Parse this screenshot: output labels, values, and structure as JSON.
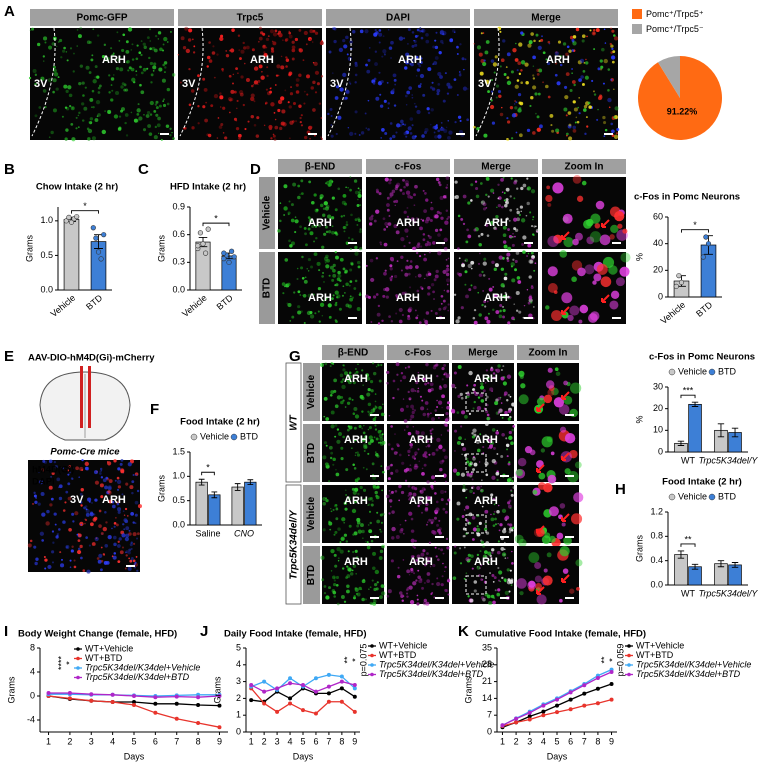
{
  "panel_letters": [
    "A",
    "B",
    "C",
    "D",
    "E",
    "F",
    "G",
    "H",
    "I",
    "J",
    "K"
  ],
  "panel_A": {
    "headers": [
      "Pomc-GFP",
      "Trpc5",
      "DAPI",
      "Merge"
    ],
    "header_colors": [
      "#39d439",
      "#e02020",
      "#3040e8",
      "#f0d020"
    ],
    "labels": [
      [
        "3V",
        "ARH"
      ],
      [
        "3V",
        "ARH"
      ],
      [
        "3V",
        "ARH"
      ],
      [
        "3V",
        "ARH"
      ]
    ]
  },
  "panel_D": {
    "headers": [
      "β-END",
      "c-Fos",
      "Merge",
      "Zoom In"
    ],
    "header_colors": [
      "#39d439",
      "#d030d0",
      "#f0d020",
      "#f0d020"
    ],
    "rows": [
      "Vehicle",
      "BTD"
    ],
    "labels": [
      [
        "ARH",
        "ARH",
        "ARH"
      ],
      [
        "ARH",
        "ARH",
        "ARH"
      ]
    ]
  },
  "panel_E": {
    "title": "AAV-DIO-hM4D(Gi)-mCherry",
    "caption": "Pomc-Cre mice",
    "channels": [
      "hM4D(Gi)",
      "DAPI"
    ],
    "channel_colors": [
      "#ff3030",
      "#4060ff"
    ],
    "labels": [
      "3V",
      "ARH"
    ]
  },
  "panel_G": {
    "headers": [
      "β-END",
      "c-Fos",
      "Merge",
      "Zoom In"
    ],
    "header_colors": [
      "#39d439",
      "#d030d0",
      "#f0d020",
      "#f0d020"
    ],
    "groups": [
      "WT",
      "Trpc5K34del/Y"
    ],
    "rows": [
      "Vehicle",
      "BTD",
      "Vehicle",
      "BTD"
    ],
    "labels": [
      [
        "ARH",
        "ARH",
        "ARH"
      ],
      [
        "ARH",
        "ARH",
        "ARH"
      ],
      [
        "ARH",
        "ARH",
        "ARH"
      ],
      [
        "ARH",
        "ARH",
        "ARH"
      ]
    ]
  },
  "chart_data": [
    {
      "type": "pie",
      "categories": [
        "Pomc⁺/Trpc5⁺",
        "Pomc⁺/Trpc5⁻"
      ],
      "values": [
        91.22,
        8.78
      ],
      "value_labels": [
        "91.22%",
        null
      ],
      "colors": [
        "#ff6a13",
        "#a6a6a6"
      ]
    },
    {
      "type": "bar",
      "title": "Chow Intake (2 hr)",
      "ylabel": "Grams",
      "categories": [
        "Vehicle",
        "BTD"
      ],
      "values": [
        1.02,
        0.7
      ],
      "errors": [
        0.03,
        0.1
      ],
      "colors": [
        "#c8c8c8",
        "#3d7fd6"
      ],
      "points": [
        [
          1.0,
          1.05,
          0.98,
          1.03,
          1.06
        ],
        [
          0.9,
          0.75,
          0.55,
          0.45,
          0.8
        ]
      ],
      "ylim": [
        0,
        1.2
      ],
      "yticks": [
        {
          "value": 0,
          "label": "0.0"
        },
        {
          "value": 0.5,
          "label": "0.5"
        },
        {
          "value": 1,
          "label": "1.0"
        }
      ],
      "significance": "*"
    },
    {
      "type": "bar",
      "title": "HFD Intake (2 hr)",
      "ylabel": "Grams",
      "categories": [
        "Vehicle",
        "BTD"
      ],
      "values": [
        0.52,
        0.37
      ],
      "errors": [
        0.05,
        0.03
      ],
      "colors": [
        "#c8c8c8",
        "#3d7fd6"
      ],
      "points": [
        [
          0.45,
          0.62,
          0.5,
          0.4,
          0.66,
          0.48
        ],
        [
          0.34,
          0.38,
          0.3,
          0.42,
          0.36,
          0.4
        ]
      ],
      "ylim": [
        0,
        0.9
      ],
      "yticks": [
        {
          "value": 0,
          "label": "0.0"
        },
        {
          "value": 0.3,
          "label": "0.3"
        },
        {
          "value": 0.6,
          "label": "0.6"
        },
        {
          "value": 0.9,
          "label": "0.9"
        }
      ],
      "significance": "*"
    },
    {
      "type": "bar",
      "title": "c-Fos in Pomc Neurons",
      "ylabel": "%",
      "categories": [
        "Vehicle",
        "BTD"
      ],
      "values": [
        12,
        39
      ],
      "errors": [
        4,
        7
      ],
      "colors": [
        "#c8c8c8",
        "#3d7fd6"
      ],
      "points": [
        [
          8,
          16,
          11
        ],
        [
          30,
          45,
          40
        ]
      ],
      "ylim": [
        0,
        60
      ],
      "yticks": [
        0,
        20,
        40,
        60
      ],
      "significance": "*"
    },
    {
      "type": "bar",
      "title": "Food Intake (2 hr)",
      "ylabel": "Grams",
      "categories": [
        "Saline",
        "CNO"
      ],
      "series": [
        {
          "name": "Vehicle",
          "color": "#c8c8c8",
          "values": [
            0.88,
            0.78
          ],
          "errors": [
            0.06,
            0.07
          ]
        },
        {
          "name": "BTD",
          "color": "#3d7fd6",
          "values": [
            0.62,
            0.88
          ],
          "errors": [
            0.06,
            0.05
          ]
        }
      ],
      "ylim": [
        0,
        1.5
      ],
      "yticks": [
        {
          "value": 0,
          "label": "0.0"
        },
        {
          "value": 0.5,
          "label": "0.5"
        },
        {
          "value": 1,
          "label": "1.0"
        },
        {
          "value": 1.5,
          "label": "1.5"
        }
      ],
      "significance": "*"
    },
    {
      "type": "bar",
      "title": "c-Fos in Pomc Neurons",
      "ylabel": "%",
      "categories": [
        "WT",
        "Trpc5K34del/Y"
      ],
      "series": [
        {
          "name": "Vehicle",
          "color": "#c8c8c8",
          "values": [
            4,
            10
          ],
          "errors": [
            1,
            3
          ]
        },
        {
          "name": "BTD",
          "color": "#3d7fd6",
          "values": [
            22,
            9
          ],
          "errors": [
            1,
            2
          ]
        }
      ],
      "ylim": [
        0,
        30
      ],
      "yticks": [
        0,
        10,
        20,
        30
      ],
      "significance": "***"
    },
    {
      "type": "bar",
      "title": "Food Intake (2 hr)",
      "ylabel": "Grams",
      "categories": [
        "WT",
        "Trpc5K34del/Y"
      ],
      "series": [
        {
          "name": "Vehicle",
          "color": "#c8c8c8",
          "values": [
            0.5,
            0.35
          ],
          "errors": [
            0.06,
            0.05
          ]
        },
        {
          "name": "BTD",
          "color": "#3d7fd6",
          "values": [
            0.3,
            0.33
          ],
          "errors": [
            0.04,
            0.04
          ]
        }
      ],
      "ylim": [
        0,
        1.2
      ],
      "yticks": [
        {
          "value": 0,
          "label": "0.0"
        },
        {
          "value": 0.4,
          "label": "0.4"
        },
        {
          "value": 0.8,
          "label": "0.8"
        },
        {
          "value": 1.2,
          "label": "1.2"
        }
      ],
      "significance": "**"
    },
    {
      "type": "line",
      "title": "Body Weight Change (female, HFD)",
      "xlabel": "Days",
      "ylabel": "Grams",
      "x": [
        1,
        2,
        3,
        4,
        5,
        6,
        7,
        8,
        9
      ],
      "series": [
        {
          "name": "WT+Vehicle",
          "color": "#000000",
          "values": [
            0,
            -0.5,
            -0.8,
            -1,
            -1,
            -1.3,
            -1.3,
            -1.5,
            -1.6
          ]
        },
        {
          "name": "WT+BTD",
          "color": "#e8342c",
          "values": [
            0,
            -0.4,
            -0.8,
            -1,
            -1.5,
            -2.8,
            -3.8,
            -4.5,
            -5.2
          ]
        },
        {
          "name": "Trpc5K34del/K34del+Vehicle",
          "color": "#3fa9f5",
          "values": [
            0.3,
            0.3,
            0.2,
            0.2,
            0.1,
            0,
            0.1,
            0.2,
            0.2
          ]
        },
        {
          "name": "Trpc5K34del/K34del+BTD",
          "color": "#b026c8",
          "values": [
            0.5,
            0.5,
            0.3,
            0.2,
            0,
            -0.2,
            -0.1,
            -0.2,
            0
          ]
        }
      ],
      "xlim": [
        0.6,
        9.4
      ],
      "xticks": [
        1,
        2,
        3,
        4,
        5,
        6,
        7,
        8,
        9
      ],
      "ylim": [
        -6,
        8
      ],
      "yticks": [
        -4,
        0,
        4,
        8
      ],
      "legend": "upper center",
      "annotations": [
        "*",
        "****"
      ]
    },
    {
      "type": "line",
      "title": "Daily Food Intake (female, HFD)",
      "xlabel": "Days",
      "ylabel": "Grams",
      "x": [
        1,
        2,
        3,
        4,
        5,
        6,
        7,
        8,
        9
      ],
      "series": [
        {
          "name": "WT+Vehicle",
          "color": "#000000",
          "values": [
            1.9,
            1.8,
            2.4,
            2,
            2.6,
            2.3,
            2.3,
            2.6,
            2.1
          ]
        },
        {
          "name": "WT+BTD",
          "color": "#e8342c",
          "values": [
            2.6,
            1.7,
            1.2,
            1.7,
            1.3,
            1.1,
            1.8,
            1.8,
            1.2
          ]
        },
        {
          "name": "Trpc5K34del/K34del+Vehicle",
          "color": "#3fa9f5",
          "values": [
            2.7,
            3,
            2.5,
            3.2,
            2.7,
            3.2,
            3.4,
            3.3,
            2.6
          ]
        },
        {
          "name": "Trpc5K34del/K34del+BTD",
          "color": "#b026c8",
          "values": [
            2.8,
            2.4,
            2.6,
            2.9,
            2.8,
            2.4,
            2.7,
            3,
            2.8
          ]
        }
      ],
      "xlim": [
        0.6,
        9.4
      ],
      "xticks": [
        1,
        2,
        3,
        4,
        5,
        6,
        7,
        8,
        9
      ],
      "ylim": [
        0,
        5
      ],
      "yticks": [
        0,
        1,
        2,
        3,
        4,
        5
      ],
      "legend": "outside right",
      "annotations": [
        "p=0.075",
        "*",
        "**"
      ]
    },
    {
      "type": "line",
      "title": "Cumulative Food Intake (female, HFD)",
      "xlabel": "Days",
      "ylabel": "Grams",
      "x": [
        1,
        2,
        3,
        4,
        5,
        6,
        7,
        8,
        9
      ],
      "series": [
        {
          "name": "WT+Vehicle",
          "color": "#000000",
          "values": [
            2,
            4,
            6.5,
            8.5,
            11,
            13.5,
            16,
            18,
            20
          ]
        },
        {
          "name": "WT+BTD",
          "color": "#e8342c",
          "values": [
            2.5,
            4,
            5.2,
            7,
            8.3,
            9.5,
            11,
            12,
            13.5
          ]
        },
        {
          "name": "Trpc5K34del/K34del+Vehicle",
          "color": "#3fa9f5",
          "values": [
            2.8,
            5.7,
            8.5,
            11.5,
            14,
            17,
            20,
            23.5,
            26
          ]
        },
        {
          "name": "Trpc5K34del/K34del+BTD",
          "color": "#b026c8",
          "values": [
            2.8,
            5.5,
            8,
            11,
            13.5,
            16.5,
            19.5,
            22.5,
            25
          ]
        }
      ],
      "xlim": [
        0.6,
        9.4
      ],
      "xticks": [
        1,
        2,
        3,
        4,
        5,
        6,
        7,
        8,
        9
      ],
      "ylim": [
        0,
        35
      ],
      "yticks": [
        0,
        7,
        14,
        21,
        28,
        35
      ],
      "legend": "outside right",
      "annotations": [
        "p=0.059",
        "*",
        "**"
      ]
    }
  ]
}
